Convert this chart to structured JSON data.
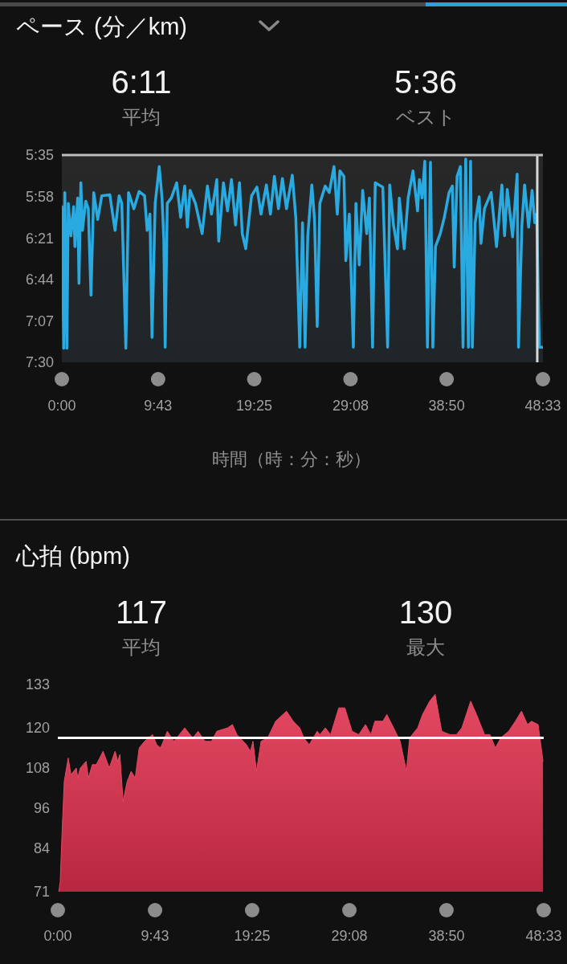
{
  "chart_data": [
    {
      "type": "line",
      "title": "ペース (分／km)",
      "xlabel": "時間（時：分：秒）",
      "annotations": [
        "6:11",
        "平均",
        "5:36",
        "ベスト"
      ],
      "x": [
        0,
        0.19,
        0.3,
        0.51,
        0.65,
        0.92,
        1.19,
        1.32,
        1.6,
        1.73,
        1.92,
        2.08,
        2.41,
        2.67,
        2.94,
        3.22,
        3.62,
        4.03,
        4.84,
        5.37,
        5.78,
        6.05,
        6.46,
        6.73,
        7.27,
        7.8,
        8.35,
        8.61,
        8.89,
        9.1,
        9.42,
        9.83,
        10.11,
        10.29,
        10.43,
        10.64,
        11.05,
        11.59,
        11.99,
        12.4,
        12.67,
        12.94,
        13.48,
        14.16,
        14.69,
        15.1,
        15.64,
        15.83,
        16.31,
        16.72,
        17.12,
        17.53,
        17.93,
        18.21,
        18.56,
        19.15,
        19.69,
        20.1,
        20.64,
        21.05,
        21.45,
        21.86,
        22.26,
        22.67,
        23.26,
        23.61,
        24.01,
        24.29,
        24.55,
        24.82,
        25.23,
        25.5,
        25.77,
        26.04,
        26.58,
        26.99,
        27.47,
        27.8,
        28.06,
        28.47,
        28.66,
        29.01,
        29.42,
        29.68,
        30.01,
        30.36,
        30.77,
        31.04,
        31.36,
        31.63,
        32.39,
        32.88,
        33.09,
        33.47,
        33.87,
        34.06,
        34.55,
        34.95,
        35.44,
        35.9,
        36.09,
        36.36,
        36.63,
        36.9,
        37.2,
        37.44,
        37.71,
        38.19,
        38.6,
        39.08,
        39.41,
        39.6,
        39.89,
        40.22,
        40.49,
        40.76,
        41.03,
        41.25,
        41.43,
        41.71,
        42.12,
        42.3,
        42.65,
        43.33,
        43.87,
        44.41,
        44.68,
        44.95,
        45.49,
        45.95,
        46.09,
        46.43,
        46.7,
        47.11,
        47.46,
        47.73,
        47.92,
        48.19,
        48.54
      ],
      "series": [
        {
          "color": "#29abe2",
          "values": [
            6.06,
            7.37,
            5.93,
            7.37,
            6.03,
            6.33,
            6.06,
            6.43,
            5.98,
            6.77,
            5.84,
            6.28,
            6.01,
            6.08,
            6.88,
            5.93,
            6.18,
            5.96,
            5.95,
            6.28,
            5.96,
            6.03,
            7.37,
            5.93,
            6.08,
            5.92,
            5.96,
            6.28,
            6.13,
            7.27,
            6.03,
            5.69,
            5.98,
            6.36,
            7.36,
            6.03,
            5.98,
            5.84,
            6.16,
            5.87,
            6.25,
            5.91,
            6.03,
            6.31,
            5.87,
            6.13,
            5.81,
            6.38,
            5.84,
            6.1,
            5.81,
            6.23,
            5.84,
            6.31,
            6.45,
            5.96,
            5.88,
            6.13,
            5.86,
            6.13,
            5.78,
            6.08,
            5.8,
            6.08,
            5.77,
            6.16,
            7.36,
            6.21,
            7.36,
            6.33,
            5.86,
            6.18,
            7.17,
            6.03,
            5.87,
            5.93,
            5.69,
            6.13,
            5.73,
            5.78,
            6.56,
            6.13,
            7.36,
            6.03,
            6.6,
            5.91,
            6.31,
            5.98,
            7.36,
            5.84,
            5.88,
            7.36,
            5.86,
            6.23,
            6.45,
            5.98,
            6.45,
            5.98,
            5.73,
            6.1,
            5.81,
            5.98,
            5.64,
            7.36,
            5.65,
            7.36,
            6.43,
            6.31,
            6.16,
            5.93,
            5.87,
            6.62,
            5.78,
            5.69,
            7.36,
            5.62,
            7.36,
            5.64,
            7.36,
            6.21,
            5.97,
            6.4,
            6.08,
            5.93,
            6.43,
            5.86,
            6.33,
            5.9,
            6.34,
            5.76,
            7.36,
            6.23,
            5.86,
            6.25,
            5.91,
            6.21,
            6.13,
            7.36,
            7.36
          ]
        }
      ],
      "xlim": [
        0,
        48.55
      ],
      "xticks": [
        {
          "value": 0,
          "label": "0:00"
        },
        {
          "value": 9.7167,
          "label": "9:43"
        },
        {
          "value": 19.4167,
          "label": "19:25"
        },
        {
          "value": 29.1333,
          "label": "29:08"
        },
        {
          "value": 38.8333,
          "label": "38:50"
        },
        {
          "value": 48.55,
          "label": "48:33"
        }
      ],
      "ylim": [
        7.5,
        5.5833
      ],
      "yticks": [
        {
          "value": 5.5833,
          "label": "5:35"
        },
        {
          "value": 5.9667,
          "label": "5:58"
        },
        {
          "value": 6.35,
          "label": "6:21"
        },
        {
          "value": 6.7333,
          "label": "6:44"
        },
        {
          "value": 7.1167,
          "label": "7:07"
        },
        {
          "value": 7.5,
          "label": "7:30"
        }
      ],
      "ref_lines": [
        {
          "axis": "x",
          "value": 47.98,
          "color": "#d8d8d8"
        },
        {
          "axis": "y",
          "value": 5.5833,
          "color": "#bdbdbd"
        }
      ]
    },
    {
      "type": "area",
      "title": "心拍 (bpm)",
      "annotations": [
        "117",
        "平均",
        "130",
        "最大"
      ],
      "x": [
        0.1,
        0.24,
        0.43,
        0.64,
        1.04,
        1.31,
        1.85,
        1.98,
        2.25,
        2.83,
        3.05,
        3.45,
        3.85,
        4.52,
        5.14,
        5.72,
        5.99,
        6.2,
        6.52,
        6.93,
        7.33,
        7.73,
        8.13,
        8.67,
        9.47,
        9.87,
        10.27,
        10.94,
        11.61,
        12.68,
        13.48,
        14.02,
        14.69,
        15.35,
        15.89,
        16.96,
        17.44,
        17.9,
        18.84,
        19.24,
        19.5,
        19.85,
        20.31,
        20.97,
        21.77,
        22.85,
        23.52,
        24.18,
        24.58,
        25.12,
        25.92,
        26.19,
        26.73,
        27.26,
        28.07,
        28.68,
        29.4,
        30.07,
        30.74,
        31.28,
        31.68,
        32.48,
        32.88,
        33.55,
        34.21,
        34.83,
        35.15,
        35.96,
        36.44,
        37.16,
        37.7,
        38.36,
        39.17,
        39.83,
        40.37,
        41.25,
        41.84,
        42.64,
        43.18,
        43.72,
        44.25,
        45.05,
        45.72,
        46.33,
        46.93,
        47.33,
        47.99,
        48.26,
        48.48
      ],
      "series": [
        {
          "color": "#e0304d",
          "values": [
            71,
            74,
            89,
            104,
            111,
            106,
            108,
            105,
            108,
            110,
            105,
            109,
            109,
            113,
            108,
            113,
            110,
            112,
            98,
            104,
            107,
            105,
            114,
            116,
            118,
            115,
            114,
            119,
            116,
            120,
            117,
            119,
            116,
            116,
            119,
            120,
            121,
            118,
            115,
            113,
            116,
            107,
            116,
            117,
            122,
            125,
            122,
            120,
            117,
            115,
            119,
            118,
            120,
            118,
            126,
            126,
            119,
            118,
            121,
            118,
            122,
            122,
            124,
            120,
            116,
            107,
            117,
            120,
            124,
            128,
            130,
            119,
            118,
            118,
            120,
            128,
            124,
            118,
            118,
            114,
            117,
            119,
            122,
            125,
            121,
            122,
            121,
            115,
            110
          ]
        }
      ],
      "xlim": [
        0,
        48.55
      ],
      "xticks": [
        {
          "value": 0,
          "label": "0:00"
        },
        {
          "value": 9.7167,
          "label": "9:43"
        },
        {
          "value": 19.4167,
          "label": "19:25"
        },
        {
          "value": 29.1333,
          "label": "29:08"
        },
        {
          "value": 38.8333,
          "label": "38:50"
        },
        {
          "value": 48.55,
          "label": "48:33"
        }
      ],
      "ylim": [
        71,
        133
      ],
      "yticks": [
        71,
        84,
        96,
        108,
        120,
        133
      ],
      "ref_lines": [
        {
          "axis": "y",
          "value": 117,
          "color": "#ffffff"
        }
      ]
    }
  ]
}
